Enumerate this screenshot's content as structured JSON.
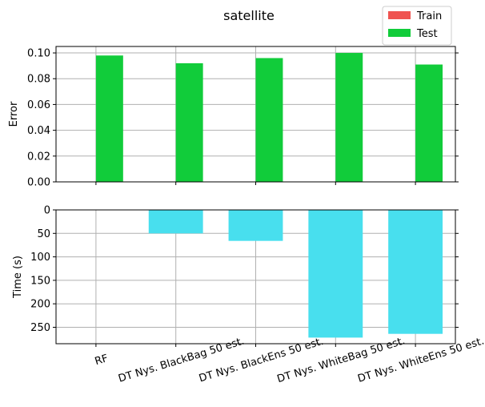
{
  "chart_data": [
    {
      "type": "bar",
      "title": "satellite",
      "categories": [
        "RF",
        "DT Nys. BlackBag 50 est.",
        "DT Nys. BlackEns 50 est.",
        "DT Nys. WhiteBag 50 est.",
        "DT Nys. WhiteEns 50 est."
      ],
      "series": [
        {
          "name": "Train",
          "values": [
            0.0,
            0.0,
            0.0,
            0.0,
            0.0
          ],
          "color": "#ef5350"
        },
        {
          "name": "Test",
          "values": [
            0.098,
            0.092,
            0.096,
            0.1,
            0.091
          ],
          "color": "#11cc3a"
        }
      ],
      "xlabel": "",
      "ylabel": "Error",
      "ylim": [
        0,
        0.105
      ],
      "yticks": [
        "0.00",
        "0.02",
        "0.04",
        "0.06",
        "0.08",
        "0.10"
      ],
      "grid": true,
      "legend_position": "top-right"
    },
    {
      "type": "bar",
      "categories": [
        "RF",
        "DT Nys. BlackBag 50 est.",
        "DT Nys. BlackEns 50 est.",
        "DT Nys. WhiteBag 50 est.",
        "DT Nys. WhiteEns 50 est."
      ],
      "series": [
        {
          "values": [
            0,
            50,
            66,
            272,
            264
          ],
          "color": "#48dfee"
        }
      ],
      "xlabel": "",
      "ylabel": "Time (s)",
      "ylim": [
        0,
        285
      ],
      "y_inverted": true,
      "yticks": [
        "0",
        "50",
        "100",
        "150",
        "200",
        "250"
      ],
      "grid": true
    }
  ]
}
